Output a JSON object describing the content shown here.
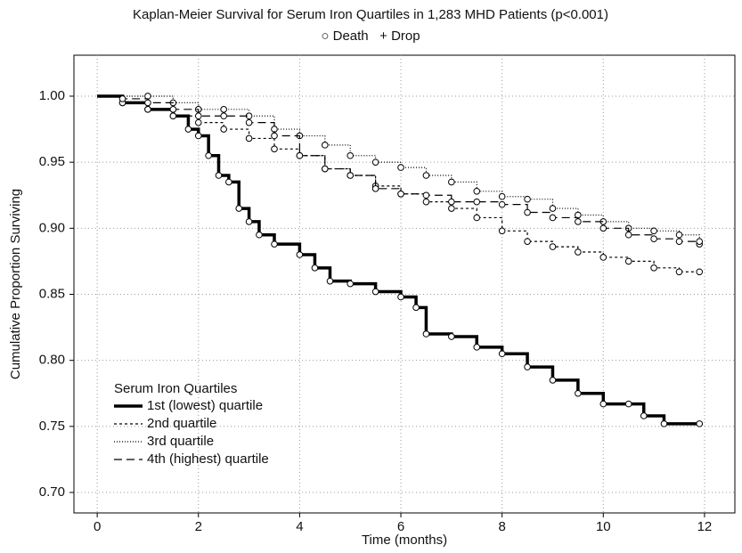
{
  "chart_data": {
    "type": "step",
    "title": "Kaplan-Meier Survival for Serum Iron Quartiles in 1,283 MHD Patients (p<0.001)",
    "subtitle": "○ Death   + Drop",
    "x_label": "Time (months)",
    "y_label": "Cumulative Proportion Surviving",
    "legend_title": "Serum Iron Quartiles",
    "xlim": [
      -0.46,
      12.6
    ],
    "ylim": [
      0.6845,
      1.031
    ],
    "xticks": [
      0,
      2,
      4,
      6,
      8,
      10,
      12
    ],
    "yticks": [
      {
        "value": 0.7,
        "label": "0.70"
      },
      {
        "value": 0.75,
        "label": "0.75"
      },
      {
        "value": 0.8,
        "label": "0.80"
      },
      {
        "value": 0.85,
        "label": "0.85"
      },
      {
        "value": 0.9,
        "label": "0.90"
      },
      {
        "value": 0.95,
        "label": "0.95"
      },
      {
        "value": 1.0,
        "label": "1.00"
      }
    ],
    "grid": true,
    "series": [
      {
        "name": "1st (lowest) quartile",
        "color": "#000000",
        "dash": "solid",
        "x": [
          0,
          0.5,
          1,
          1.5,
          1.8,
          2,
          2.2,
          2.4,
          2.6,
          2.8,
          3,
          3.2,
          3.5,
          4,
          4.3,
          4.6,
          5,
          5.5,
          6,
          6.3,
          6.5,
          7,
          7.5,
          8,
          8.5,
          9,
          9.5,
          10,
          10.5,
          10.8,
          11.2,
          11.9
        ],
        "values": [
          1.0,
          0.995,
          0.99,
          0.985,
          0.975,
          0.97,
          0.955,
          0.94,
          0.935,
          0.915,
          0.905,
          0.895,
          0.888,
          0.88,
          0.87,
          0.86,
          0.858,
          0.852,
          0.848,
          0.84,
          0.82,
          0.818,
          0.81,
          0.805,
          0.795,
          0.785,
          0.775,
          0.767,
          0.767,
          0.758,
          0.752,
          0.752
        ]
      },
      {
        "name": "2nd quartile",
        "color": "#000000",
        "dash": "dashed",
        "x": [
          0,
          0.5,
          1,
          1.5,
          2,
          2.5,
          3,
          3.5,
          4,
          4.5,
          5,
          5.5,
          6,
          6.5,
          7,
          7.5,
          8,
          8.5,
          9,
          9.5,
          10,
          10.5,
          11,
          11.5,
          11.9
        ],
        "values": [
          1.0,
          0.995,
          0.99,
          0.985,
          0.98,
          0.975,
          0.968,
          0.96,
          0.955,
          0.945,
          0.94,
          0.932,
          0.926,
          0.92,
          0.915,
          0.908,
          0.898,
          0.89,
          0.886,
          0.882,
          0.878,
          0.875,
          0.87,
          0.867,
          0.867
        ]
      },
      {
        "name": "3rd quartile",
        "color": "#000000",
        "dash": "dotted",
        "x": [
          0,
          1,
          1.5,
          2,
          2.5,
          3,
          3.5,
          4,
          4.5,
          5,
          5.5,
          6,
          6.5,
          7,
          7.5,
          8,
          8.5,
          9,
          9.5,
          10,
          10.5,
          11,
          11.5,
          11.9
        ],
        "values": [
          1.0,
          1.0,
          0.995,
          0.99,
          0.99,
          0.985,
          0.975,
          0.97,
          0.963,
          0.955,
          0.95,
          0.946,
          0.94,
          0.935,
          0.928,
          0.924,
          0.922,
          0.915,
          0.91,
          0.905,
          0.9,
          0.898,
          0.895,
          0.888
        ]
      },
      {
        "name": "4th (highest) quartile",
        "color": "#000000",
        "dash": "long-dash",
        "x": [
          0,
          0.5,
          1,
          1.5,
          2,
          2.5,
          3,
          3.5,
          4,
          4.5,
          5,
          5.5,
          6,
          6.5,
          7,
          7.5,
          8,
          8.5,
          9,
          9.5,
          10,
          10.5,
          11,
          11.5,
          11.9
        ],
        "values": [
          1.0,
          0.998,
          0.995,
          0.99,
          0.985,
          0.985,
          0.98,
          0.97,
          0.955,
          0.945,
          0.94,
          0.93,
          0.926,
          0.925,
          0.92,
          0.92,
          0.918,
          0.912,
          0.908,
          0.905,
          0.9,
          0.895,
          0.892,
          0.89,
          0.89
        ]
      }
    ]
  }
}
